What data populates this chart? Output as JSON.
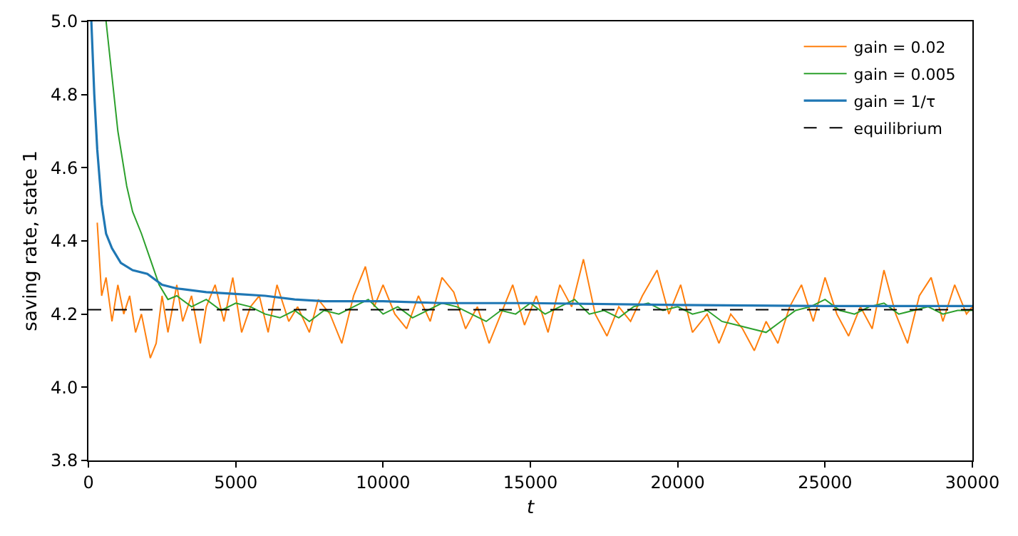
{
  "chart_data": {
    "type": "line",
    "xlabel": "t",
    "ylabel": "saving rate, state 1",
    "xlim": [
      0,
      30000
    ],
    "ylim": [
      3.8,
      5.0
    ],
    "xticks": [
      0,
      5000,
      10000,
      15000,
      20000,
      25000,
      30000
    ],
    "yticks": [
      {
        "value": 3.8,
        "label": "3.8"
      },
      {
        "value": 4.0,
        "label": "4.0"
      },
      {
        "value": 4.2,
        "label": "4.2"
      },
      {
        "value": 4.4,
        "label": "4.4"
      },
      {
        "value": 4.6,
        "label": "4.6"
      },
      {
        "value": 4.8,
        "label": "4.8"
      },
      {
        "value": 5.0,
        "label": "5.0"
      }
    ],
    "grid": false,
    "legend": "top right",
    "line_style": "solid",
    "marker": "none",
    "series": [
      {
        "name": "gain = 0.02",
        "color": "#ff7f0e",
        "x": [
          300,
          450,
          600,
          800,
          1000,
          1200,
          1400,
          1600,
          1800,
          2100,
          2300,
          2500,
          2700,
          3000,
          3200,
          3500,
          3800,
          4000,
          4300,
          4600,
          4900,
          5200,
          5500,
          5800,
          6100,
          6400,
          6800,
          7100,
          7500,
          7800,
          8200,
          8600,
          9000,
          9400,
          9700,
          10000,
          10400,
          10800,
          11200,
          11600,
          12000,
          12400,
          12800,
          13200,
          13600,
          14000,
          14400,
          14800,
          15200,
          15600,
          16000,
          16400,
          16800,
          17200,
          17600,
          18000,
          18400,
          18800,
          19300,
          19700,
          20100,
          20500,
          21000,
          21400,
          21800,
          22200,
          22600,
          23000,
          23400,
          23800,
          24200,
          24600,
          25000,
          25400,
          25800,
          26200,
          26600,
          27000,
          27400,
          27800,
          28200,
          28600,
          29000,
          29400,
          29800,
          30000
        ],
        "values": [
          4.45,
          4.25,
          4.3,
          4.18,
          4.28,
          4.2,
          4.25,
          4.15,
          4.2,
          4.08,
          4.12,
          4.25,
          4.15,
          4.28,
          4.18,
          4.25,
          4.12,
          4.22,
          4.28,
          4.18,
          4.3,
          4.15,
          4.22,
          4.25,
          4.15,
          4.28,
          4.18,
          4.22,
          4.15,
          4.24,
          4.2,
          4.12,
          4.25,
          4.33,
          4.22,
          4.28,
          4.2,
          4.16,
          4.25,
          4.18,
          4.3,
          4.26,
          4.16,
          4.22,
          4.12,
          4.2,
          4.28,
          4.17,
          4.25,
          4.15,
          4.28,
          4.22,
          4.35,
          4.2,
          4.14,
          4.22,
          4.18,
          4.25,
          4.32,
          4.2,
          4.28,
          4.15,
          4.2,
          4.12,
          4.2,
          4.16,
          4.1,
          4.18,
          4.12,
          4.22,
          4.28,
          4.18,
          4.3,
          4.2,
          4.14,
          4.22,
          4.16,
          4.32,
          4.2,
          4.12,
          4.25,
          4.3,
          4.18,
          4.28,
          4.2,
          4.22
        ]
      },
      {
        "name": "gain = 0.005",
        "color": "#2ca02c",
        "x": [
          600,
          800,
          1000,
          1300,
          1500,
          1800,
          2100,
          2400,
          2700,
          3000,
          3500,
          4000,
          4500,
          5000,
          5500,
          6000,
          6500,
          7000,
          7500,
          8000,
          8500,
          9000,
          9500,
          10000,
          10500,
          11000,
          11500,
          12000,
          12500,
          13000,
          13500,
          14000,
          14500,
          15000,
          15500,
          16000,
          16500,
          17000,
          17500,
          18000,
          18500,
          19000,
          19500,
          20000,
          20500,
          21000,
          21500,
          22000,
          22500,
          23000,
          23500,
          24000,
          24500,
          25000,
          25500,
          26000,
          26500,
          27000,
          27500,
          28000,
          28500,
          29000,
          29500,
          30000
        ],
        "values": [
          5.0,
          4.85,
          4.7,
          4.55,
          4.48,
          4.42,
          4.35,
          4.28,
          4.24,
          4.25,
          4.22,
          4.24,
          4.21,
          4.23,
          4.22,
          4.2,
          4.19,
          4.21,
          4.18,
          4.21,
          4.2,
          4.22,
          4.24,
          4.2,
          4.22,
          4.19,
          4.21,
          4.23,
          4.22,
          4.2,
          4.18,
          4.21,
          4.2,
          4.23,
          4.2,
          4.22,
          4.24,
          4.2,
          4.21,
          4.19,
          4.22,
          4.23,
          4.21,
          4.22,
          4.2,
          4.21,
          4.18,
          4.17,
          4.16,
          4.15,
          4.18,
          4.21,
          4.22,
          4.24,
          4.21,
          4.2,
          4.22,
          4.23,
          4.2,
          4.21,
          4.22,
          4.2,
          4.21,
          4.21
        ]
      },
      {
        "name": "gain = 1/τ",
        "color": "#1f77b4",
        "x": [
          100,
          200,
          300,
          450,
          600,
          800,
          1100,
          1500,
          2000,
          2500,
          3000,
          4000,
          5000,
          6000,
          7000,
          8000,
          10000,
          12000,
          15000,
          20000,
          25000,
          30000
        ],
        "values": [
          5.0,
          4.8,
          4.65,
          4.5,
          4.42,
          4.38,
          4.34,
          4.32,
          4.31,
          4.28,
          4.27,
          4.26,
          4.255,
          4.25,
          4.24,
          4.235,
          4.235,
          4.23,
          4.23,
          4.225,
          4.222,
          4.222
        ]
      }
    ],
    "ref_lines": [
      {
        "axis": "y",
        "value": 4.212,
        "label": "equilibrium",
        "color": "#000000",
        "line_style": "dashed"
      }
    ]
  }
}
